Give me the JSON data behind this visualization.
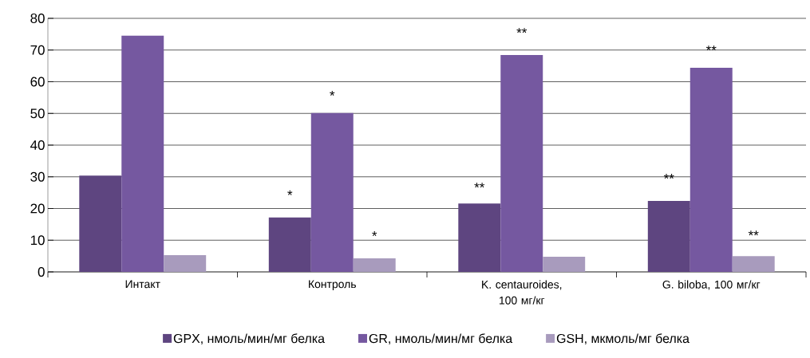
{
  "chart_data": {
    "type": "bar",
    "categories": [
      "Интакт",
      "Контроль",
      "K. centauroides, 100 мг/кг",
      "G. biloba, 100 мг/кг"
    ],
    "series": [
      {
        "name": "GPX, нмоль/мин/мг белка",
        "color": "#5e4580",
        "values": [
          30.4,
          17.2,
          21.6,
          22.4
        ]
      },
      {
        "name": "GR, нмоль/мин/мг белка",
        "color": "#7558a0",
        "values": [
          74.5,
          50.1,
          68.4,
          64.4
        ]
      },
      {
        "name": "GSH, мкмоль/мг белка",
        "color": "#a89bbd",
        "values": [
          5.3,
          4.3,
          4.8,
          5.0
        ]
      }
    ],
    "ylim": [
      0,
      80
    ],
    "yticks": [
      0,
      10,
      20,
      30,
      40,
      50,
      60,
      70,
      80
    ],
    "grid": "y",
    "legend": "bottom",
    "annotations": [
      "*",
      "*",
      "*",
      "**",
      "**",
      "**",
      "**",
      "**"
    ]
  }
}
